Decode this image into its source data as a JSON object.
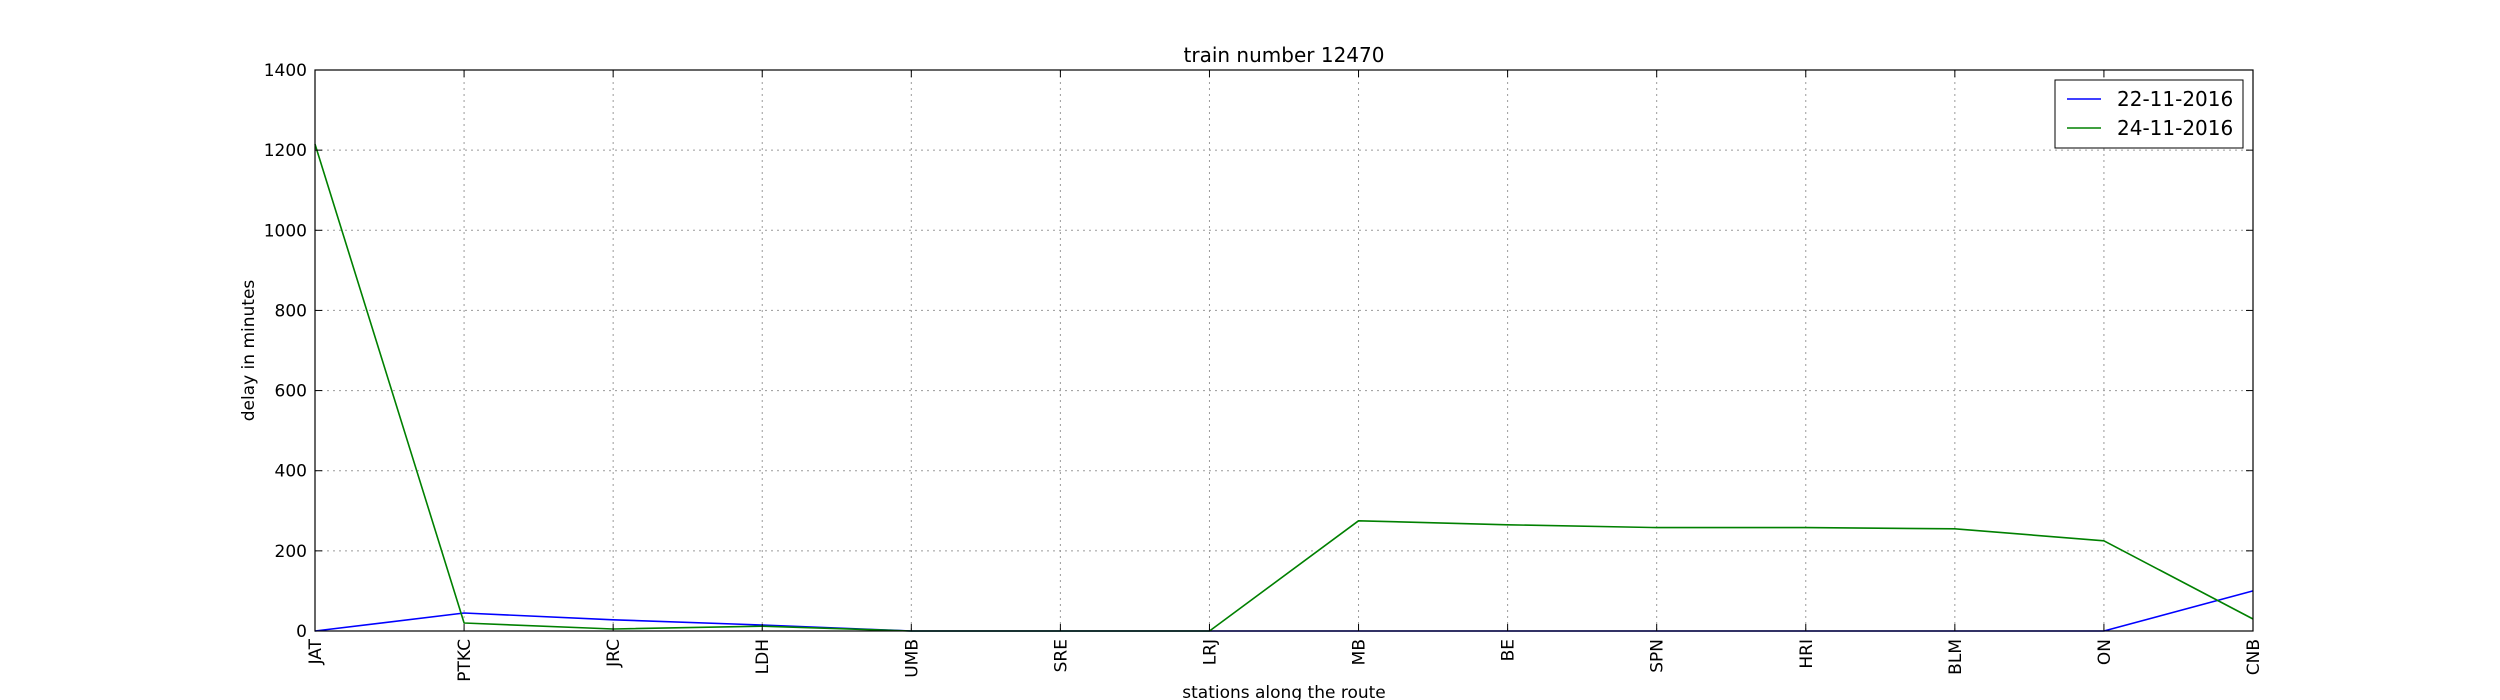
{
  "chart_data": {
    "type": "line",
    "title": "train number 12470",
    "xlabel": "stations along the route",
    "ylabel": "delay in minutes",
    "categories": [
      "JAT",
      "PTKC",
      "JRC",
      "LDH",
      "UMB",
      "SRE",
      "LRJ",
      "MB",
      "BE",
      "SPN",
      "HRI",
      "BLM",
      "ON",
      "CNB"
    ],
    "ylim": [
      0,
      1400
    ],
    "yticks": [
      0,
      200,
      400,
      600,
      800,
      1000,
      1200,
      1400
    ],
    "grid": true,
    "legend_position": "top-right",
    "series": [
      {
        "name": "22-11-2016",
        "color": "#0000ff",
        "values": [
          0,
          45,
          28,
          15,
          0,
          0,
          0,
          0,
          0,
          0,
          0,
          0,
          0,
          100
        ]
      },
      {
        "name": "24-11-2016",
        "color": "#008000",
        "values": [
          1215,
          20,
          5,
          12,
          0,
          0,
          0,
          275,
          265,
          258,
          258,
          255,
          225,
          30
        ]
      }
    ]
  }
}
